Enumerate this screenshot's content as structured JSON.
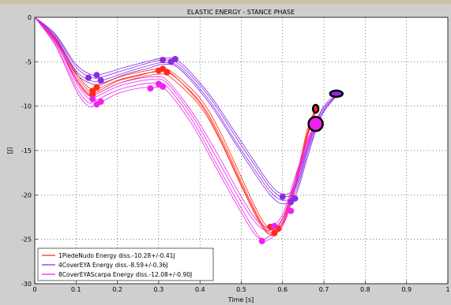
{
  "chart_data": {
    "type": "line",
    "title": "ELASTIC ENERGY - STANCE PHASE",
    "xlabel": "Time [s]",
    "ylabel": "[J]",
    "xlim": [
      0,
      1
    ],
    "ylim": [
      -30,
      0
    ],
    "xticks": [
      "0",
      "0.1",
      "0.2",
      "0.3",
      "0.4",
      "0.5",
      "0.6",
      "0.7",
      "0.8",
      "0.9",
      "1"
    ],
    "yticks": [
      "0",
      "-5",
      "-10",
      "-15",
      "-20",
      "-25",
      "-30"
    ],
    "grid": true,
    "legend_position": "bottom-left",
    "series": [
      {
        "name": "1PiedeNudo Energy diss.-10.28+/-0.41J",
        "color": "#ff2a1a",
        "curves": [
          {
            "x": [
              0,
              0.05,
              0.1,
              0.13,
              0.15,
              0.2,
              0.25,
              0.3,
              0.33,
              0.4,
              0.45,
              0.5,
              0.55,
              0.58,
              0.61,
              0.64,
              0.66,
              0.68
            ],
            "y": [
              0,
              -2.5,
              -6.5,
              -8.2,
              -8.1,
              -7.1,
              -6.5,
              -6.1,
              -6.4,
              -9.5,
              -13.5,
              -18.5,
              -23.2,
              -24.2,
              -22,
              -17,
              -13,
              -10.4
            ]
          },
          {
            "x": [
              0,
              0.05,
              0.1,
              0.13,
              0.15,
              0.2,
              0.25,
              0.3,
              0.33,
              0.4,
              0.45,
              0.5,
              0.55,
              0.58,
              0.61,
              0.64,
              0.66,
              0.68
            ],
            "y": [
              0,
              -2.8,
              -7,
              -8.7,
              -8.6,
              -7.5,
              -6.8,
              -6.4,
              -6.8,
              -10,
              -14,
              -19,
              -23.6,
              -24.4,
              -22.5,
              -17.5,
              -13.5,
              -10.6
            ]
          },
          {
            "x": [
              0,
              0.05,
              0.1,
              0.13,
              0.15,
              0.2,
              0.25,
              0.3,
              0.33,
              0.4,
              0.45,
              0.5,
              0.55,
              0.58,
              0.61,
              0.64,
              0.66,
              0.68
            ],
            "y": [
              0,
              -2.3,
              -6.2,
              -7.9,
              -7.8,
              -6.8,
              -6.2,
              -5.8,
              -6.1,
              -9.1,
              -13,
              -18,
              -22.8,
              -23.9,
              -21.6,
              -16.6,
              -12.6,
              -10.2
            ]
          },
          {
            "x": [
              0,
              0.05,
              0.1,
              0.13,
              0.15,
              0.2,
              0.25,
              0.3,
              0.33,
              0.4,
              0.45,
              0.5,
              0.55,
              0.58,
              0.61,
              0.64,
              0.66,
              0.68
            ],
            "y": [
              0,
              -2.6,
              -6.8,
              -8.5,
              -8.4,
              -7.2,
              -6.6,
              -6.0,
              -6.3,
              -9.7,
              -13.8,
              -18.8,
              -23.4,
              -24.5,
              -22.2,
              -17.2,
              -13.2,
              -10.5
            ]
          }
        ],
        "markers": [
          {
            "x": 0.14,
            "y": -8.3
          },
          {
            "x": 0.15,
            "y": -7.9
          },
          {
            "x": 0.14,
            "y": -8.7
          },
          {
            "x": 0.31,
            "y": -5.8
          },
          {
            "x": 0.32,
            "y": -6.2
          },
          {
            "x": 0.3,
            "y": -6.0
          },
          {
            "x": 0.58,
            "y": -24.3
          },
          {
            "x": 0.59,
            "y": -23.8
          },
          {
            "x": 0.57,
            "y": -23.6
          },
          {
            "x": 0.68,
            "y": -10.3
          }
        ]
      },
      {
        "name": "4CoverEYA Energy diss.-8.59+/-0.36J",
        "color": "#8a2be2",
        "curves": [
          {
            "x": [
              0,
              0.05,
              0.1,
              0.14,
              0.17,
              0.22,
              0.27,
              0.31,
              0.35,
              0.42,
              0.48,
              0.53,
              0.57,
              0.6,
              0.63,
              0.66,
              0.69,
              0.72,
              0.74
            ],
            "y": [
              0,
              -2,
              -5.6,
              -6.8,
              -6.6,
              -5.9,
              -5.2,
              -4.8,
              -5.3,
              -8.8,
              -13,
              -16.5,
              -19.2,
              -20.2,
              -19.4,
              -15,
              -11,
              -9.2,
              -8.6
            ]
          },
          {
            "x": [
              0,
              0.05,
              0.1,
              0.14,
              0.17,
              0.22,
              0.27,
              0.31,
              0.35,
              0.42,
              0.48,
              0.53,
              0.57,
              0.6,
              0.63,
              0.66,
              0.69,
              0.72,
              0.74
            ],
            "y": [
              0,
              -2.2,
              -6,
              -7.2,
              -7.0,
              -6.2,
              -5.5,
              -5.1,
              -5.6,
              -9.2,
              -13.5,
              -17,
              -19.6,
              -20.6,
              -19.8,
              -15.4,
              -11.3,
              -9.3,
              -8.6
            ]
          },
          {
            "x": [
              0,
              0.05,
              0.1,
              0.14,
              0.17,
              0.22,
              0.27,
              0.31,
              0.35,
              0.42,
              0.48,
              0.53,
              0.57,
              0.6,
              0.63,
              0.66,
              0.69,
              0.72,
              0.74
            ],
            "y": [
              0,
              -1.9,
              -5.3,
              -6.5,
              -6.3,
              -5.6,
              -5.0,
              -4.6,
              -5.0,
              -8.5,
              -12.6,
              -16.1,
              -18.8,
              -19.9,
              -19.1,
              -14.7,
              -10.8,
              -9.0,
              -8.6
            ]
          },
          {
            "x": [
              0,
              0.05,
              0.1,
              0.14,
              0.17,
              0.22,
              0.27,
              0.31,
              0.35,
              0.42,
              0.48,
              0.53,
              0.57,
              0.6,
              0.63,
              0.66,
              0.69,
              0.72,
              0.74
            ],
            "y": [
              0,
              -2.4,
              -6.3,
              -7.5,
              -7.3,
              -6.4,
              -5.8,
              -5.3,
              -5.8,
              -9.5,
              -13.8,
              -17.4,
              -20,
              -21,
              -20.2,
              -15.8,
              -11.5,
              -9.4,
              -8.6
            ]
          }
        ],
        "markers": [
          {
            "x": 0.15,
            "y": -6.5
          },
          {
            "x": 0.13,
            "y": -6.8
          },
          {
            "x": 0.16,
            "y": -7.1
          },
          {
            "x": 0.31,
            "y": -4.8
          },
          {
            "x": 0.33,
            "y": -5.0
          },
          {
            "x": 0.34,
            "y": -4.7
          },
          {
            "x": 0.6,
            "y": -20.2
          },
          {
            "x": 0.62,
            "y": -20.8
          },
          {
            "x": 0.63,
            "y": -20.4
          },
          {
            "x": 0.73,
            "y": -8.6
          }
        ]
      },
      {
        "name": "8CoverEYAScarpa Energy diss.-12.08+/-0.90J",
        "color": "#ee22ee",
        "curves": [
          {
            "x": [
              0,
              0.05,
              0.1,
              0.13,
              0.15,
              0.2,
              0.25,
              0.29,
              0.32,
              0.38,
              0.44,
              0.5,
              0.54,
              0.56,
              0.6,
              0.63,
              0.66,
              0.68
            ],
            "y": [
              0,
              -3,
              -7.8,
              -9.6,
              -9.3,
              -8.2,
              -7.6,
              -7.4,
              -7.8,
              -11.5,
              -16.5,
              -21.5,
              -24.5,
              -25.2,
              -23.4,
              -19,
              -14.5,
              -12
            ]
          },
          {
            "x": [
              0,
              0.05,
              0.1,
              0.13,
              0.15,
              0.2,
              0.25,
              0.29,
              0.32,
              0.38,
              0.44,
              0.5,
              0.54,
              0.57,
              0.6,
              0.63,
              0.66,
              0.68
            ],
            "y": [
              0,
              -2.7,
              -7.3,
              -9.1,
              -8.9,
              -7.8,
              -7.2,
              -7.0,
              -7.4,
              -11,
              -15.8,
              -20.8,
              -23.4,
              -24.0,
              -22.6,
              -18.4,
              -14,
              -12
            ]
          },
          {
            "x": [
              0,
              0.05,
              0.1,
              0.13,
              0.15,
              0.2,
              0.25,
              0.29,
              0.32,
              0.38,
              0.44,
              0.5,
              0.54,
              0.57,
              0.6,
              0.63,
              0.66,
              0.68
            ],
            "y": [
              0,
              -3.2,
              -8.2,
              -10,
              -9.8,
              -8.6,
              -8.0,
              -7.9,
              -8.3,
              -12,
              -17,
              -22,
              -24.8,
              -24.6,
              -23,
              -18.8,
              -14.3,
              -12
            ]
          },
          {
            "x": [
              0,
              0.05,
              0.1,
              0.13,
              0.15,
              0.2,
              0.25,
              0.29,
              0.32,
              0.38,
              0.44,
              0.5,
              0.54,
              0.57,
              0.6,
              0.63,
              0.66,
              0.68
            ],
            "y": [
              0,
              -2.5,
              -7,
              -8.8,
              -8.6,
              -7.5,
              -6.9,
              -6.7,
              -7.1,
              -10.6,
              -15.2,
              -20.2,
              -23.0,
              -23.6,
              -22.2,
              -18,
              -13.8,
              -12
            ]
          }
        ],
        "markers": [
          {
            "x": 0.15,
            "y": -9.8
          },
          {
            "x": 0.14,
            "y": -9.2
          },
          {
            "x": 0.16,
            "y": -9.5
          },
          {
            "x": 0.28,
            "y": -8.0
          },
          {
            "x": 0.3,
            "y": -7.5
          },
          {
            "x": 0.31,
            "y": -7.8
          },
          {
            "x": 0.55,
            "y": -25.2
          },
          {
            "x": 0.58,
            "y": -23.5
          },
          {
            "x": 0.62,
            "y": -21.8
          },
          {
            "x": 0.68,
            "y": -12.0
          }
        ]
      }
    ]
  }
}
